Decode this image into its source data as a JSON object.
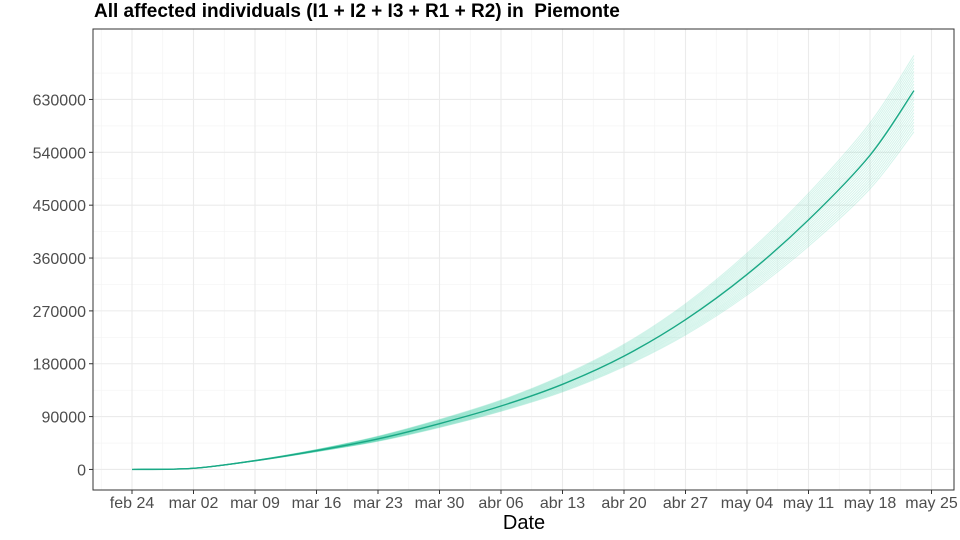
{
  "chart_data": {
    "type": "line",
    "title": "All affected individuals (I1 + I2 + I3 + R1 + R2) in  Piemonte",
    "xlabel": "Date",
    "ylabel": "",
    "x_tick_labels": [
      "feb 24",
      "mar 02",
      "mar 09",
      "mar 16",
      "mar 23",
      "mar 30",
      "abr 06",
      "abr 13",
      "abr 20",
      "abr 27",
      "may 04",
      "may 11",
      "may 18",
      "may 25"
    ],
    "y_tick_labels": [
      "0",
      "90000",
      "180000",
      "270000",
      "360000",
      "450000",
      "540000",
      "630000"
    ],
    "ylim": [
      -35000,
      750000
    ],
    "grid": true,
    "legend": "none",
    "colors": {
      "main": "#1aa885",
      "band": "#3ccfa5",
      "panel_border": "#333333",
      "grid": "#ebebeb"
    },
    "x_days_from_feb24": [
      0,
      7,
      14,
      21,
      28,
      35,
      42,
      49,
      56,
      63,
      70,
      77,
      84,
      89
    ],
    "series": [
      {
        "values": [
          0,
          2000,
          15000,
          32000,
          52000,
          78000,
          108000,
          145000,
          193000,
          255000,
          332000,
          425000,
          535000,
          645000
        ]
      }
    ],
    "uncertainty_band": {
      "upper": [
        0,
        2100,
        15600,
        33800,
        56500,
        85000,
        118000,
        160000,
        213000,
        282000,
        368000,
        470000,
        590000,
        705000
      ],
      "lower": [
        0,
        1900,
        14300,
        30300,
        48000,
        71500,
        99000,
        132000,
        175000,
        229000,
        297000,
        380000,
        478000,
        575000
      ]
    }
  }
}
